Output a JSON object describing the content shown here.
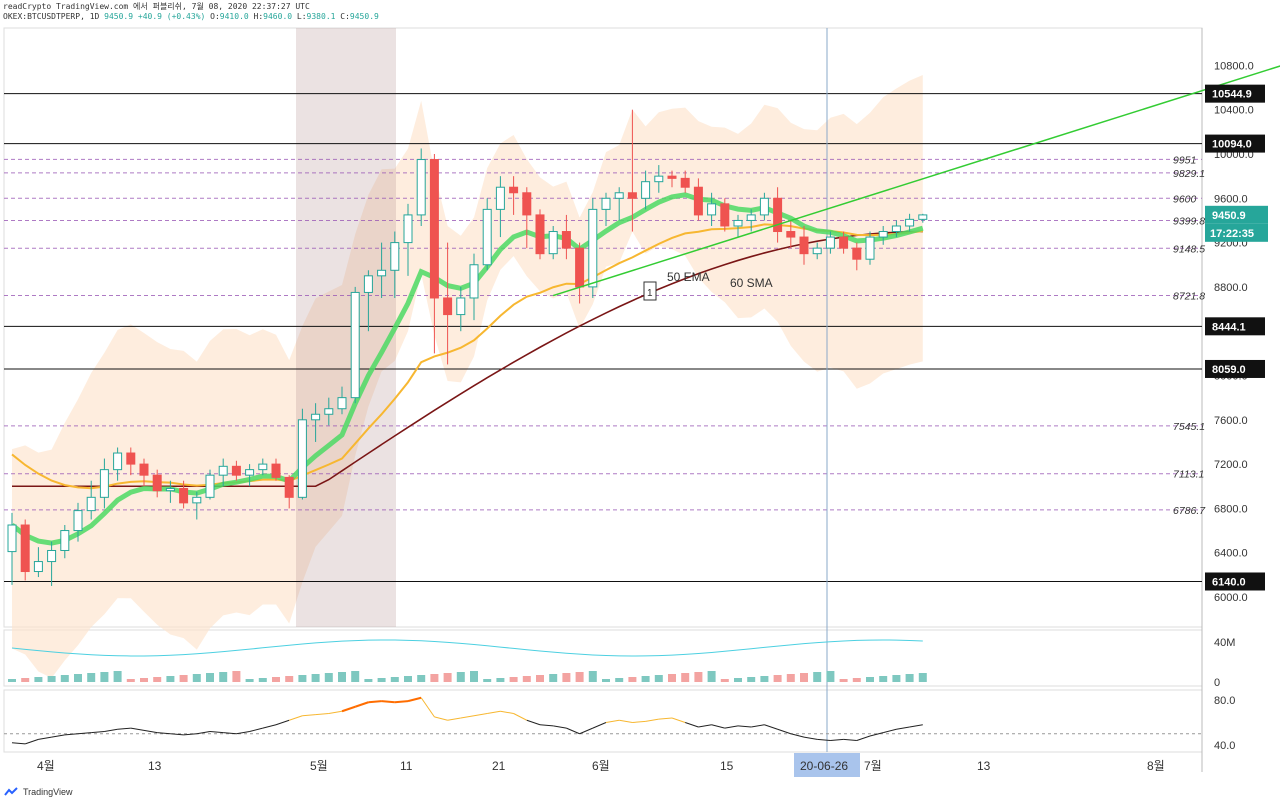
{
  "header": {
    "line1": "readCrypto TradingView.com 에서 퍼블리쉬, 7월 08, 2020 22:37:27 UTC",
    "symbol": "OKEX:BTCUSDTPERP, 1D",
    "last": "9450.9",
    "change": "+40.9 (+0.43%)",
    "o_label": "O:",
    "o": "9410.0",
    "h_label": "H:",
    "h": "9460.0",
    "l_label": "L:",
    "l": "9380.1",
    "c_label": "C:",
    "c": "9450.9"
  },
  "watermark": "TradingView",
  "colors": {
    "up": "#26a69a",
    "down": "#ef5350",
    "ema50": "#4cd964",
    "sma60": "#7a1616",
    "orange": "#f7b731",
    "band": "#fde3cc",
    "accent": "#2962ff"
  },
  "chart_data": {
    "type": "candlestick",
    "symbol": "OKEX:BTCUSDTPERP",
    "timeframe": "1D",
    "x_ticks": [
      "4월",
      "13",
      "5월",
      "11",
      "21",
      "6월",
      "15",
      "20-06-26",
      "7월",
      "13",
      "8월"
    ],
    "crosshair_date": "20-06-26",
    "price_axis": {
      "ticks": [
        6000.0,
        6400.0,
        6800.0,
        7200.0,
        7600.0,
        8000.0,
        8400.0,
        8800.0,
        9200.0,
        9600.0,
        10000.0,
        10400.0,
        10800.0
      ],
      "range": [
        5850,
        11100
      ]
    },
    "horizontal_levels_boxed": [
      10544.9,
      10094.0,
      8444.1,
      8059.0,
      6140.0
    ],
    "level_labels_italic": [
      9951,
      9829.1,
      9600,
      9399.8,
      9148.5,
      8721.8,
      7545.1,
      7113.1,
      6786.7
    ],
    "current_price": 9450.9,
    "countdown": "17:22:35",
    "annotations": [
      "50 EMA",
      "60 SMA",
      "1"
    ],
    "candles": [
      [
        6410,
        6760,
        6110,
        6650
      ],
      [
        6650,
        6700,
        6150,
        6230
      ],
      [
        6230,
        6450,
        6180,
        6320
      ],
      [
        6320,
        6500,
        6100,
        6420
      ],
      [
        6420,
        6650,
        6350,
        6600
      ],
      [
        6600,
        6850,
        6500,
        6780
      ],
      [
        6780,
        7050,
        6700,
        6900
      ],
      [
        6900,
        7250,
        6800,
        7150
      ],
      [
        7150,
        7350,
        7050,
        7300
      ],
      [
        7300,
        7350,
        7100,
        7200
      ],
      [
        7200,
        7250,
        7000,
        7100
      ],
      [
        7100,
        7150,
        6900,
        6960
      ],
      [
        6960,
        7050,
        6850,
        6980
      ],
      [
        6980,
        7050,
        6800,
        6850
      ],
      [
        6850,
        6950,
        6700,
        6900
      ],
      [
        6900,
        7150,
        6880,
        7100
      ],
      [
        7100,
        7250,
        7000,
        7180
      ],
      [
        7180,
        7230,
        7050,
        7100
      ],
      [
        7100,
        7200,
        7000,
        7150
      ],
      [
        7150,
        7250,
        7100,
        7200
      ],
      [
        7200,
        7250,
        7050,
        7080
      ],
      [
        7080,
        7100,
        6800,
        6900
      ],
      [
        6900,
        7700,
        6880,
        7600
      ],
      [
        7600,
        7750,
        7400,
        7650
      ],
      [
        7650,
        7800,
        7550,
        7700
      ],
      [
        7700,
        7900,
        7650,
        7800
      ],
      [
        7800,
        8800,
        7750,
        8750
      ],
      [
        8750,
        8950,
        8400,
        8900
      ],
      [
        8900,
        9200,
        8700,
        8950
      ],
      [
        8950,
        9300,
        8700,
        9200
      ],
      [
        9200,
        9550,
        8900,
        9450
      ],
      [
        9450,
        10050,
        9350,
        9950
      ],
      [
        9950,
        10000,
        8200,
        8700
      ],
      [
        8700,
        9200,
        8100,
        8550
      ],
      [
        8550,
        8800,
        8400,
        8700
      ],
      [
        8700,
        9100,
        8500,
        9000
      ],
      [
        9000,
        9600,
        8950,
        9500
      ],
      [
        9500,
        9800,
        9250,
        9700
      ],
      [
        9700,
        9800,
        9450,
        9650
      ],
      [
        9650,
        9700,
        9150,
        9450
      ],
      [
        9450,
        9500,
        9050,
        9100
      ],
      [
        9100,
        9350,
        9050,
        9300
      ],
      [
        9300,
        9450,
        9050,
        9150
      ],
      [
        9150,
        9200,
        8650,
        8800
      ],
      [
        8800,
        9600,
        8700,
        9500
      ],
      [
        9500,
        9650,
        9350,
        9600
      ],
      [
        9600,
        9700,
        9400,
        9650
      ],
      [
        9650,
        10400,
        9300,
        9600
      ],
      [
        9600,
        9850,
        9500,
        9750
      ],
      [
        9750,
        9900,
        9650,
        9800
      ],
      [
        9800,
        9850,
        9700,
        9780
      ],
      [
        9780,
        9850,
        9650,
        9700
      ],
      [
        9700,
        9780,
        9400,
        9450
      ],
      [
        9450,
        9650,
        9350,
        9550
      ],
      [
        9550,
        9600,
        9300,
        9350
      ],
      [
        9350,
        9450,
        9250,
        9400
      ],
      [
        9400,
        9500,
        9300,
        9450
      ],
      [
        9450,
        9650,
        9400,
        9600
      ],
      [
        9600,
        9700,
        9200,
        9300
      ],
      [
        9300,
        9400,
        9150,
        9250
      ],
      [
        9250,
        9350,
        9000,
        9100
      ],
      [
        9100,
        9200,
        9050,
        9150
      ],
      [
        9150,
        9300,
        9100,
        9250
      ],
      [
        9250,
        9300,
        9100,
        9150
      ],
      [
        9150,
        9200,
        8950,
        9050
      ],
      [
        9050,
        9300,
        9000,
        9250
      ],
      [
        9250,
        9350,
        9180,
        9300
      ],
      [
        9300,
        9400,
        9250,
        9350
      ],
      [
        9350,
        9460,
        9300,
        9410
      ],
      [
        9410,
        9460,
        9380,
        9450
      ]
    ],
    "indicator_volume": {
      "ticks": [
        "40M",
        "0"
      ]
    },
    "indicator_oscillator": {
      "ticks": [
        80.0,
        40.0
      ],
      "values": [
        42,
        41,
        45,
        47,
        49,
        50,
        51,
        52,
        54,
        55,
        53,
        51,
        50,
        49,
        50,
        52,
        51,
        50,
        52,
        55,
        58,
        62,
        66,
        67,
        68,
        70,
        74,
        78,
        79,
        78,
        79,
        82,
        65,
        62,
        64,
        66,
        68,
        70,
        68,
        62,
        58,
        57,
        55,
        50,
        55,
        60,
        62,
        60,
        61,
        63,
        64,
        60,
        56,
        58,
        55,
        57,
        56,
        58,
        54,
        50,
        47,
        45,
        44,
        45,
        44,
        48,
        51,
        54,
        56,
        58
      ]
    }
  }
}
